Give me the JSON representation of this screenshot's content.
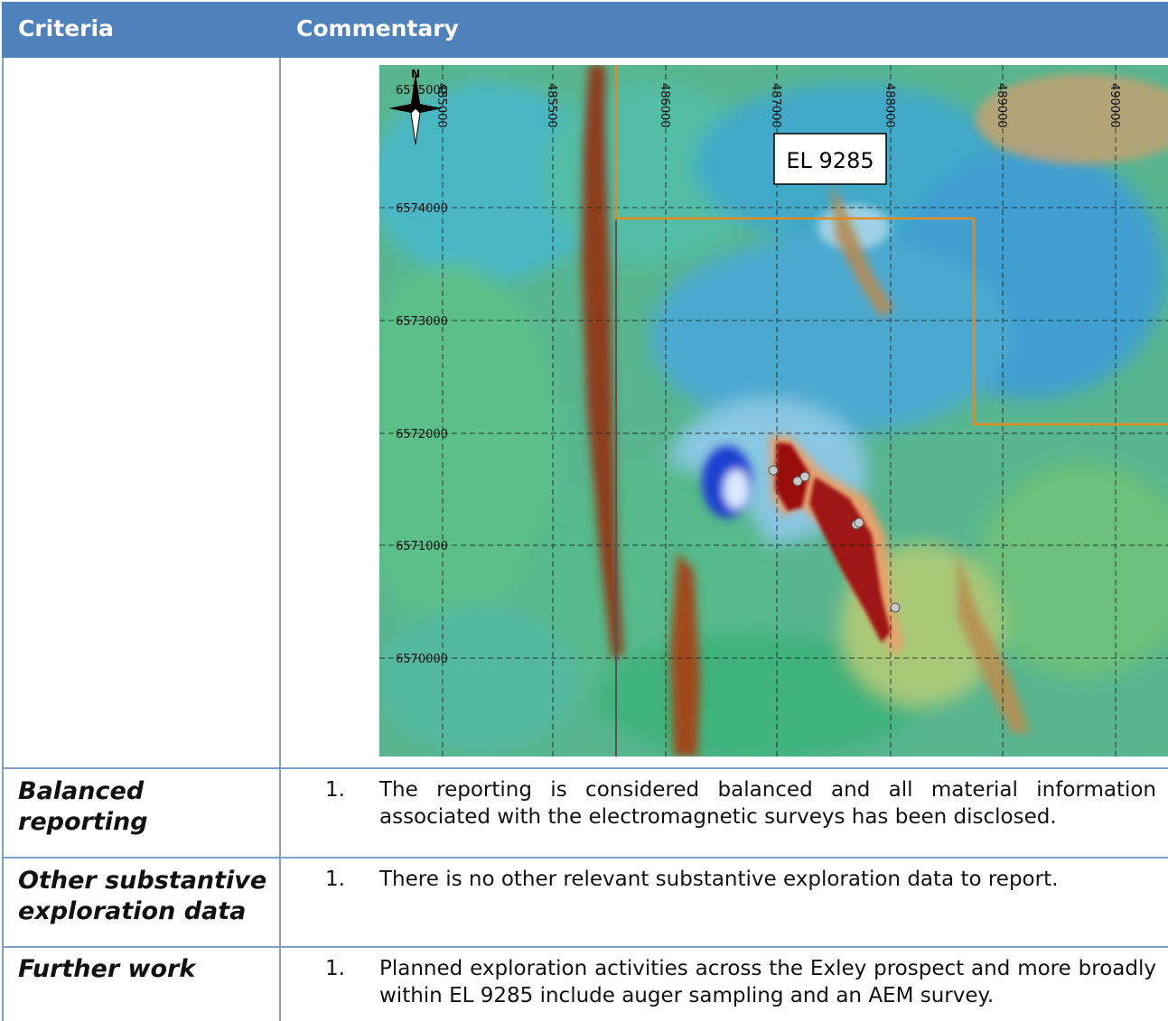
{
  "header": {
    "criteria": "Criteria",
    "commentary": "Commentary"
  },
  "map": {
    "tenement_label": "EL 9285",
    "north_label": "N",
    "eastings": [
      "485000",
      "486000",
      "487000",
      "488000",
      "489000",
      "490000"
    ],
    "first_easting": "485500",
    "northings": [
      "6574000",
      "6573000",
      "6572000",
      "6571000",
      "6570000"
    ],
    "top_northing": "6575000"
  },
  "rows": [
    {
      "criteria": "Balanced reporting",
      "num": "1.",
      "text": "The reporting is considered balanced and all material information associated with the electromagnetic surveys has been disclosed."
    },
    {
      "criteria": "Other substantive exploration data",
      "num": "1.",
      "text": "There is no other relevant substantive exploration data to report."
    },
    {
      "criteria": "Further work",
      "num": "1.",
      "text": "Planned exploration activities across the Exley prospect and more broadly within EL 9285 include auger sampling and an AEM survey."
    }
  ]
}
